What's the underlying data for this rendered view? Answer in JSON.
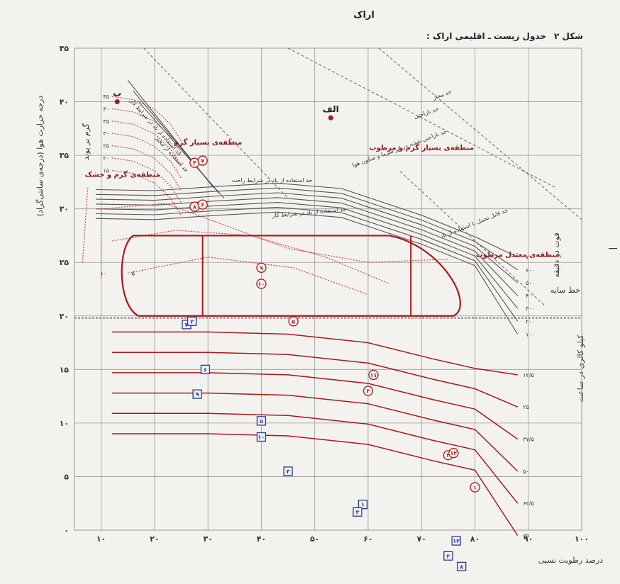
{
  "header": {
    "city": "اراک",
    "figure_label": "شکل ۲",
    "figure_title": ": جدول زیست ـ اقلیمی اراک"
  },
  "colors": {
    "red": "#a8191e",
    "red_dot": "#c8454a",
    "blue": "#2c3b8a",
    "grid": "#9a9a9a",
    "gray_line": "#555555"
  },
  "chart_data": {
    "type": "scatter",
    "x_label": "درصد رطوبت نسبی",
    "y_label": "درجه حرارت هوا (درجه‌ی سانتی‌گراد)",
    "x_ticks": [
      "۱۰",
      "۲۰",
      "۳۰",
      "۴۰",
      "۵۰",
      "۶۰",
      "۷۰",
      "۸۰",
      "۹۰",
      "۱۰۰"
    ],
    "y_ticks": [
      "۰",
      "۵",
      "۱۰",
      "۱۵",
      "۲۰",
      "۲۵",
      "۳۰",
      "۳۵",
      "۴۰",
      "۴۵"
    ],
    "xlim": [
      5,
      100
    ],
    "ylim": [
      0,
      45
    ],
    "shade_line": {
      "y": 19.8,
      "label": "خط سایه"
    },
    "comfort_zone": {
      "x_left": 14,
      "x_right": 76,
      "y_bottom": 20.0,
      "y_top": 27.5,
      "dividers_x": [
        29,
        68
      ]
    },
    "zones": [
      {
        "label": "منطقه‌ی بسیار گرم",
        "x": 30,
        "y": 36
      },
      {
        "label": "منطقه‌ی گرم و خشک",
        "x": 14,
        "y": 33
      },
      {
        "label": "منطقه‌ی بسیار گرم و مرطوب",
        "x": 70,
        "y": 35.5
      },
      {
        "label": "منطقه‌ی معتدل مرطوب",
        "x": 88,
        "y": 25.5
      }
    ],
    "letter_points": [
      {
        "label": "ب",
        "x": 13,
        "y": 40
      },
      {
        "label": "الف",
        "x": 53,
        "y": 38.5
      }
    ],
    "red_points": [
      {
        "label": "۴",
        "x": 27.5,
        "y": 34.3
      },
      {
        "label": "۷",
        "x": 29,
        "y": 34.5
      },
      {
        "label": "۸",
        "x": 27.5,
        "y": 30.2
      },
      {
        "label": "۶",
        "x": 29,
        "y": 30.4
      },
      {
        "label": "۹",
        "x": 40,
        "y": 24.5
      },
      {
        "label": "۱۰",
        "x": 40,
        "y": 23.0
      },
      {
        "label": "۵",
        "x": 46,
        "y": 19.5
      },
      {
        "label": "۱۱",
        "x": 61,
        "y": 14.5
      },
      {
        "label": "۳",
        "x": 60,
        "y": 13.0
      },
      {
        "label": "۲",
        "x": 75,
        "y": 7.0
      },
      {
        "label": "۱۲",
        "x": 76,
        "y": 7.2
      },
      {
        "label": "۱",
        "x": 80,
        "y": 4.0
      }
    ],
    "blue_points": [
      {
        "label": "۳",
        "x": 26,
        "y": 19.2
      },
      {
        "label": "۲",
        "x": 27,
        "y": 19.5
      },
      {
        "label": "۶",
        "x": 29.5,
        "y": 15.0
      },
      {
        "label": "۹",
        "x": 28,
        "y": 12.7
      },
      {
        "label": "۵",
        "x": 40,
        "y": 10.2
      },
      {
        "label": "۱۰",
        "x": 40,
        "y": 8.7
      },
      {
        "label": "۴",
        "x": 45,
        "y": 5.5
      },
      {
        "label": "۱",
        "x": 59,
        "y": 2.4
      },
      {
        "label": "۳",
        "x": 58,
        "y": 1.7
      },
      {
        "label": "۱۲",
        "x": 76.5,
        "y": -1.0
      },
      {
        "label": "۲",
        "x": 75,
        "y": -2.4
      },
      {
        "label": "۸",
        "x": 77.5,
        "y": -3.4
      }
    ],
    "right_scale_labels": [
      "۱۲/۵",
      "۲۵",
      "۳۷/۵",
      "۵۰",
      "۶۲/۵",
      "۷۵"
    ],
    "right_scale_title": "کیلو کالری در ساعت",
    "wind_labels": [
      "۷۰۰",
      "۶۰۰",
      "۵۰۰",
      "۴۰۰",
      "۳۰۰",
      "۲۰۰",
      "۱۰۰"
    ],
    "wind_title": "فوت در دقیقه",
    "left_curve_labels": [
      "۴۵",
      "۴۰",
      "۳۵",
      "۳۰",
      "۲۵",
      "۲۰",
      "۱۵"
    ],
    "left_curve_title": "گرم بر پوند",
    "left_curve_small": [
      "۱۰",
      "۵"
    ],
    "notes": [
      {
        "text": "حد مجاز",
        "x": 74,
        "y": 40.5,
        "rot": -20
      },
      {
        "text": "حد ناراحتی",
        "x": 71,
        "y": 38.8,
        "rot": -20
      },
      {
        "text": "حد ناراحتی شدید در اثر سرما و سکون هوا",
        "x": 66,
        "y": 35.5,
        "rot": -20
      },
      {
        "text": "حد قابل تحمل با استفاده از باد",
        "x": 80,
        "y": 28.5,
        "rot": -22
      },
      {
        "text": "حد استفاده از باد در شرایط کار",
        "x": 20,
        "y": 37.5,
        "rot": 48
      },
      {
        "text": "حد استفاده از تبخیر",
        "x": 23,
        "y": 35,
        "rot": 48
      },
      {
        "text": "حد استفاده از باد در شرایط راحت",
        "x": 42,
        "y": 32.5,
        "rot": 0
      },
      {
        "text": "حد استفاده از باد در شرایط کار",
        "x": 49,
        "y": 29.5,
        "rot": -5
      }
    ]
  }
}
